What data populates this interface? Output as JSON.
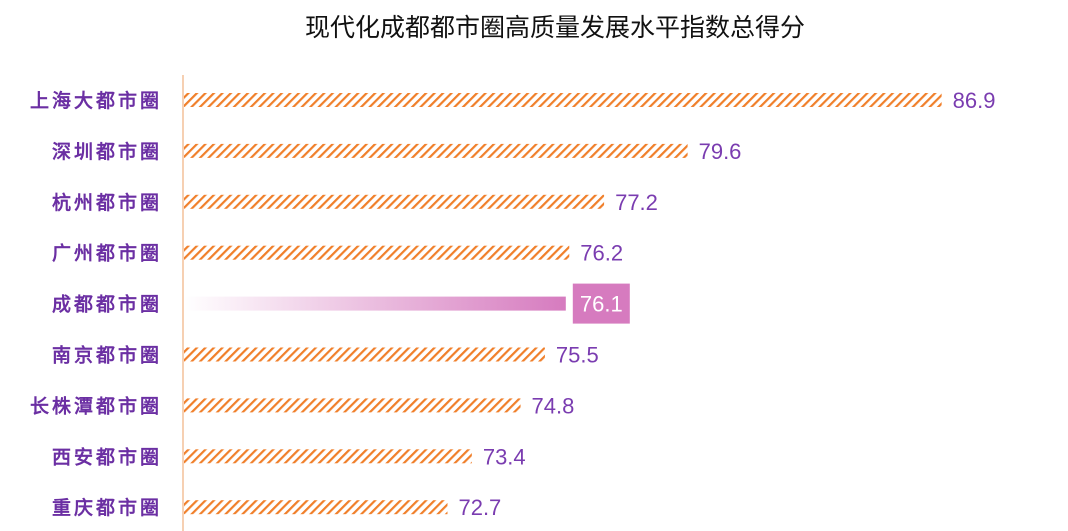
{
  "chart_data": {
    "type": "bar",
    "orientation": "horizontal",
    "title": "现代化成都都市圈高质量发展水平指数总得分",
    "categories": [
      "上海大都市圈",
      "深圳都市圈",
      "杭州都市圈",
      "广州都市圈",
      "成都都市圈",
      "南京都市圈",
      "长株潭都市圈",
      "西安都市圈",
      "重庆都市圈"
    ],
    "values": [
      86.9,
      79.6,
      77.2,
      76.2,
      76.1,
      75.5,
      74.8,
      73.4,
      72.7
    ],
    "data_labels": [
      "86.9",
      "79.6",
      "77.2",
      "76.2",
      "76.1",
      "75.5",
      "74.8",
      "73.4",
      "72.7"
    ],
    "highlight_index": 4,
    "xlim": [
      65.1,
      90
    ],
    "grid": false,
    "legend": "none",
    "colors": {
      "bar": "#f07f2a",
      "highlight": "#d67bbf",
      "category_label": "#6b2fa3",
      "value_label": "#7a3cb0",
      "axis": "#f0b080"
    }
  }
}
